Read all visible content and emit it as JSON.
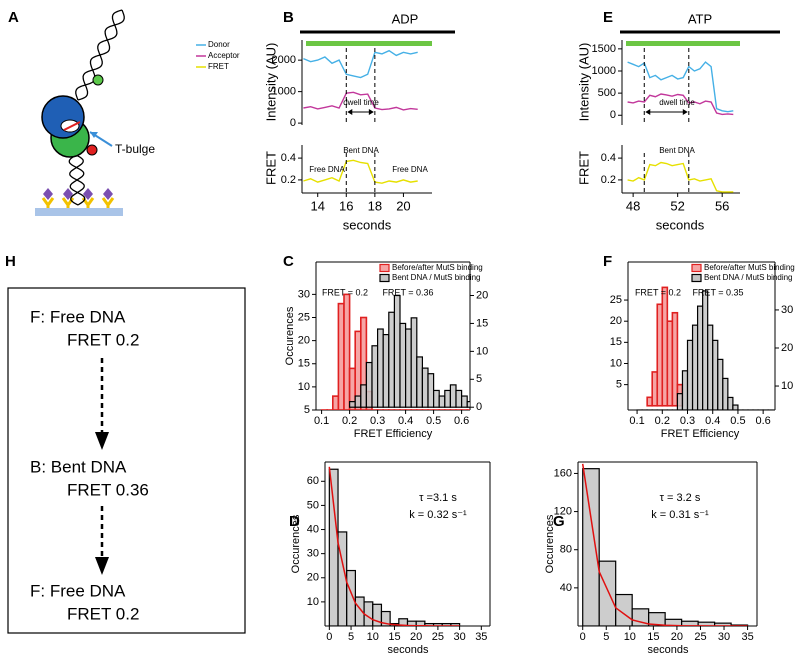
{
  "panel_labels": [
    "A",
    "B",
    "C",
    "D",
    "E",
    "F",
    "G",
    "H"
  ],
  "diagram_a": {
    "label": "T-bulge"
  },
  "scheme_h": {
    "states": [
      {
        "name": "F: Free DNA",
        "fret": "FRET 0.2"
      },
      {
        "name": "B: Bent DNA",
        "fret": "FRET 0.36"
      },
      {
        "name": "F: Free DNA",
        "fret": "FRET 0.2"
      }
    ]
  },
  "chart_data": [
    {
      "type": "line",
      "title": "ADP",
      "ylabel": "Intensity (AU)",
      "x": [
        13,
        13.5,
        14,
        14.5,
        15,
        15.5,
        16,
        16.5,
        17,
        17.5,
        18,
        18.5,
        19,
        19.5,
        20,
        20.5,
        21
      ],
      "series": [
        {
          "name": "Donor",
          "color": "#45b0e6",
          "values": [
            2050,
            1950,
            2000,
            2100,
            1900,
            2000,
            1550,
            1500,
            1450,
            1550,
            2250,
            2200,
            2300,
            2150,
            2250,
            2200,
            2250
          ]
        },
        {
          "name": "Acceptor",
          "color": "#c2379b",
          "values": [
            480,
            520,
            450,
            500,
            550,
            480,
            950,
            980,
            900,
            920,
            480,
            430,
            450,
            500,
            420,
            460,
            440
          ]
        }
      ],
      "xlim": [
        12.9,
        22
      ],
      "ylim": [
        -60,
        2640
      ],
      "yticks": [
        0,
        1000,
        2000
      ],
      "events": [
        16,
        18
      ],
      "annotations": [
        "dwell time"
      ]
    },
    {
      "type": "line",
      "ylabel": "FRET",
      "xlabel": "seconds",
      "x": [
        13,
        13.5,
        14,
        14.5,
        15,
        15.5,
        16,
        16.5,
        17,
        17.5,
        18,
        18.5,
        19,
        19.5,
        20,
        20.5,
        21
      ],
      "series": [
        {
          "name": "FRET",
          "color": "#e6e000",
          "values": [
            0.19,
            0.21,
            0.18,
            0.2,
            0.22,
            0.19,
            0.37,
            0.38,
            0.36,
            0.35,
            0.18,
            0.17,
            0.19,
            0.18,
            0.2,
            0.18,
            0.19
          ]
        }
      ],
      "xlim": [
        12.9,
        22
      ],
      "ylim": [
        0.08,
        0.52
      ],
      "yticks": [
        0.2,
        0.4
      ],
      "xticks": [
        14,
        16,
        18,
        20
      ],
      "events": [
        16,
        18
      ],
      "annotations": [
        "Free DNA",
        "Bent DNA",
        "Free DNA"
      ]
    },
    {
      "type": "line",
      "title": "ATP",
      "ylabel": "Intensity (AU)",
      "x": [
        47.5,
        48,
        48.5,
        49,
        49.5,
        50,
        50.5,
        51,
        51.5,
        52,
        52.5,
        53,
        53.5,
        54,
        54.5,
        55,
        55.5,
        56,
        56.5,
        57
      ],
      "series": [
        {
          "color": "#45b0e6",
          "values": [
            1200,
            1150,
            1100,
            1180,
            850,
            900,
            800,
            850,
            900,
            820,
            850,
            1100,
            1000,
            1050,
            1200,
            1100,
            150,
            100,
            80,
            100
          ]
        },
        {
          "color": "#c2379b",
          "values": [
            300,
            280,
            320,
            300,
            450,
            420,
            480,
            460,
            430,
            470,
            450,
            280,
            300,
            260,
            320,
            300,
            50,
            20,
            30,
            20
          ]
        }
      ],
      "xlim": [
        47,
        57.6
      ],
      "ylim": [
        -220,
        1700
      ],
      "yticks": [
        0,
        500,
        1000,
        1500
      ],
      "events": [
        49,
        53
      ],
      "annotations": [
        "dwell time"
      ]
    },
    {
      "type": "line",
      "ylabel": "FRET",
      "xlabel": "seconds",
      "x": [
        47.5,
        48,
        48.5,
        49,
        49.5,
        50,
        50.5,
        51,
        51.5,
        52,
        52.5,
        53,
        53.5,
        54,
        54.5,
        55,
        55.5,
        56,
        56.5,
        57
      ],
      "series": [
        {
          "color": "#e6e000",
          "values": [
            0.2,
            0.19,
            0.22,
            0.2,
            0.34,
            0.33,
            0.36,
            0.35,
            0.33,
            0.34,
            0.35,
            0.2,
            0.21,
            0.19,
            0.2,
            0.21,
            0.1,
            0.09,
            0.09,
            0.09
          ]
        }
      ],
      "xlim": [
        47,
        57.6
      ],
      "ylim": [
        0.08,
        0.52
      ],
      "yticks": [
        0.2,
        0.4
      ],
      "xticks": [
        48,
        52,
        56
      ],
      "events": [
        49,
        53
      ],
      "annotations": [
        "Bent DNA"
      ]
    },
    {
      "type": "histogram",
      "ylabel": "Occurences",
      "xlabel": "FRET Efficiency",
      "bins": [
        0.1,
        0.12,
        0.14,
        0.16,
        0.18,
        0.2,
        0.22,
        0.24,
        0.26,
        0.28,
        0.3,
        0.32,
        0.34,
        0.36,
        0.38,
        0.4,
        0.42,
        0.44,
        0.46,
        0.48,
        0.5,
        0.52,
        0.54,
        0.56,
        0.58,
        0.6,
        0.62,
        0.64
      ],
      "series": [
        {
          "name": "Before/after MutS binding",
          "color": "#e02020",
          "values": [
            0,
            3,
            8,
            28,
            30,
            14,
            22,
            25,
            9,
            3,
            0,
            0,
            0,
            0,
            0,
            0,
            0,
            0,
            0,
            0,
            0,
            0,
            0,
            0,
            0,
            0,
            0
          ]
        },
        {
          "name": "Bent DNA / MutS binding",
          "color": "#000000",
          "axis": "y2",
          "values": [
            0,
            0,
            0,
            0,
            0,
            1,
            2,
            4,
            8,
            11,
            14,
            13,
            17,
            20,
            15,
            14,
            16,
            9,
            7,
            6,
            3,
            2,
            3,
            4,
            3,
            2,
            1
          ]
        }
      ],
      "xlim": [
        0.08,
        0.63
      ],
      "ylim": [
        5,
        37
      ],
      "y2lim": [
        -0.5,
        26
      ],
      "xticks": [
        0.1,
        0.2,
        0.3,
        0.4,
        0.5,
        0.6
      ],
      "yticks": [
        5,
        10,
        15,
        20,
        25,
        30
      ],
      "y2ticks": [
        0,
        5,
        10,
        15,
        20
      ],
      "annotations": [
        "FRET = 0.2",
        "FRET = 0.36"
      ]
    },
    {
      "type": "histogram",
      "xlabel": "FRET Efficiency",
      "bins": [
        0.1,
        0.12,
        0.14,
        0.16,
        0.18,
        0.2,
        0.22,
        0.24,
        0.26,
        0.28,
        0.3,
        0.32,
        0.34,
        0.36,
        0.38,
        0.4,
        0.42,
        0.44,
        0.46,
        0.48,
        0.5,
        0.52,
        0.54,
        0.56,
        0.58,
        0.6,
        0.62,
        0.64
      ],
      "series": [
        {
          "name": "Before/after MutS binding",
          "color": "#e02020",
          "values": [
            0,
            0,
            2,
            8,
            24,
            28,
            20,
            22,
            5,
            0,
            0,
            0,
            0,
            0,
            0,
            0,
            0,
            0,
            0,
            0,
            0,
            0,
            0,
            0,
            0,
            0,
            0
          ]
        },
        {
          "name": "Bent DNA / MutS binding",
          "color": "#000000",
          "axis": "y2",
          "values": [
            0,
            0,
            0,
            0,
            0,
            0,
            0,
            2,
            8,
            14,
            22,
            26,
            31,
            35,
            26,
            22,
            17,
            12,
            7,
            5,
            3,
            1,
            0,
            0,
            0,
            0,
            0
          ]
        }
      ],
      "xlim": [
        0.064,
        0.647
      ],
      "ylim": [
        -1,
        34
      ],
      "y2lim": [
        3.7,
        42.6
      ],
      "xticks": [
        0.1,
        0.2,
        0.3,
        0.4,
        0.5,
        0.6
      ],
      "yticks": [
        5,
        10,
        15,
        20,
        25
      ],
      "y2ticks": [
        10,
        20,
        30
      ],
      "annotations": [
        "FRET = 0.2",
        "FRET = 0.35"
      ]
    },
    {
      "type": "histogram",
      "ylabel": "Occurences",
      "xlabel": "seconds",
      "bins": [
        0,
        2,
        4,
        6,
        8,
        10,
        12,
        14,
        16,
        18,
        20,
        22,
        24,
        26,
        28,
        30
      ],
      "series": [
        {
          "color": "#000000",
          "values": [
            65,
            39,
            23,
            12,
            10,
            9,
            6,
            1,
            3,
            2,
            2,
            1,
            1,
            1,
            1
          ]
        }
      ],
      "fit": {
        "color": "#e01010",
        "x": [
          0,
          2,
          4,
          6,
          8,
          10,
          12,
          14,
          16,
          18,
          20,
          22,
          24,
          26,
          28,
          30
        ],
        "values": [
          66,
          34.6,
          18.2,
          9.5,
          5,
          2.6,
          1.4,
          0.7,
          0.4,
          0.2,
          0.1,
          0.1,
          0,
          0,
          0,
          0
        ]
      },
      "xlim": [
        -1,
        37
      ],
      "ylim": [
        0,
        68
      ],
      "xticks": [
        0,
        5,
        10,
        15,
        20,
        25,
        30,
        35
      ],
      "yticks": [
        10,
        20,
        30,
        40,
        50,
        60
      ],
      "annotations": [
        "τ =3.1 s",
        "k = 0.32 s⁻¹"
      ]
    },
    {
      "type": "histogram",
      "ylabel": "Occurences",
      "xlabel": "seconds",
      "bins": [
        0,
        3.5,
        7,
        10.5,
        14,
        17.5,
        21,
        24.5,
        28,
        31.5,
        35
      ],
      "series": [
        {
          "color": "#000000",
          "values": [
            165,
            68,
            33,
            18,
            14,
            7,
            5,
            4,
            3,
            1
          ]
        }
      ],
      "fit": {
        "color": "#e01010",
        "x": [
          0,
          3.5,
          7,
          10.5,
          14,
          17.5,
          21,
          24.5,
          28,
          31.5,
          35
        ],
        "values": [
          170,
          56.9,
          19.1,
          6.4,
          2.1,
          0.7,
          0.2,
          0.1,
          0,
          0,
          0
        ]
      },
      "xlim": [
        -1,
        37
      ],
      "ylim": [
        0,
        172
      ],
      "xticks": [
        0,
        5,
        10,
        15,
        20,
        25,
        30,
        35
      ],
      "yticks": [
        40,
        80,
        120,
        160
      ],
      "annotations": [
        "τ = 3.2 s",
        "k = 0.31 s⁻¹"
      ]
    }
  ]
}
